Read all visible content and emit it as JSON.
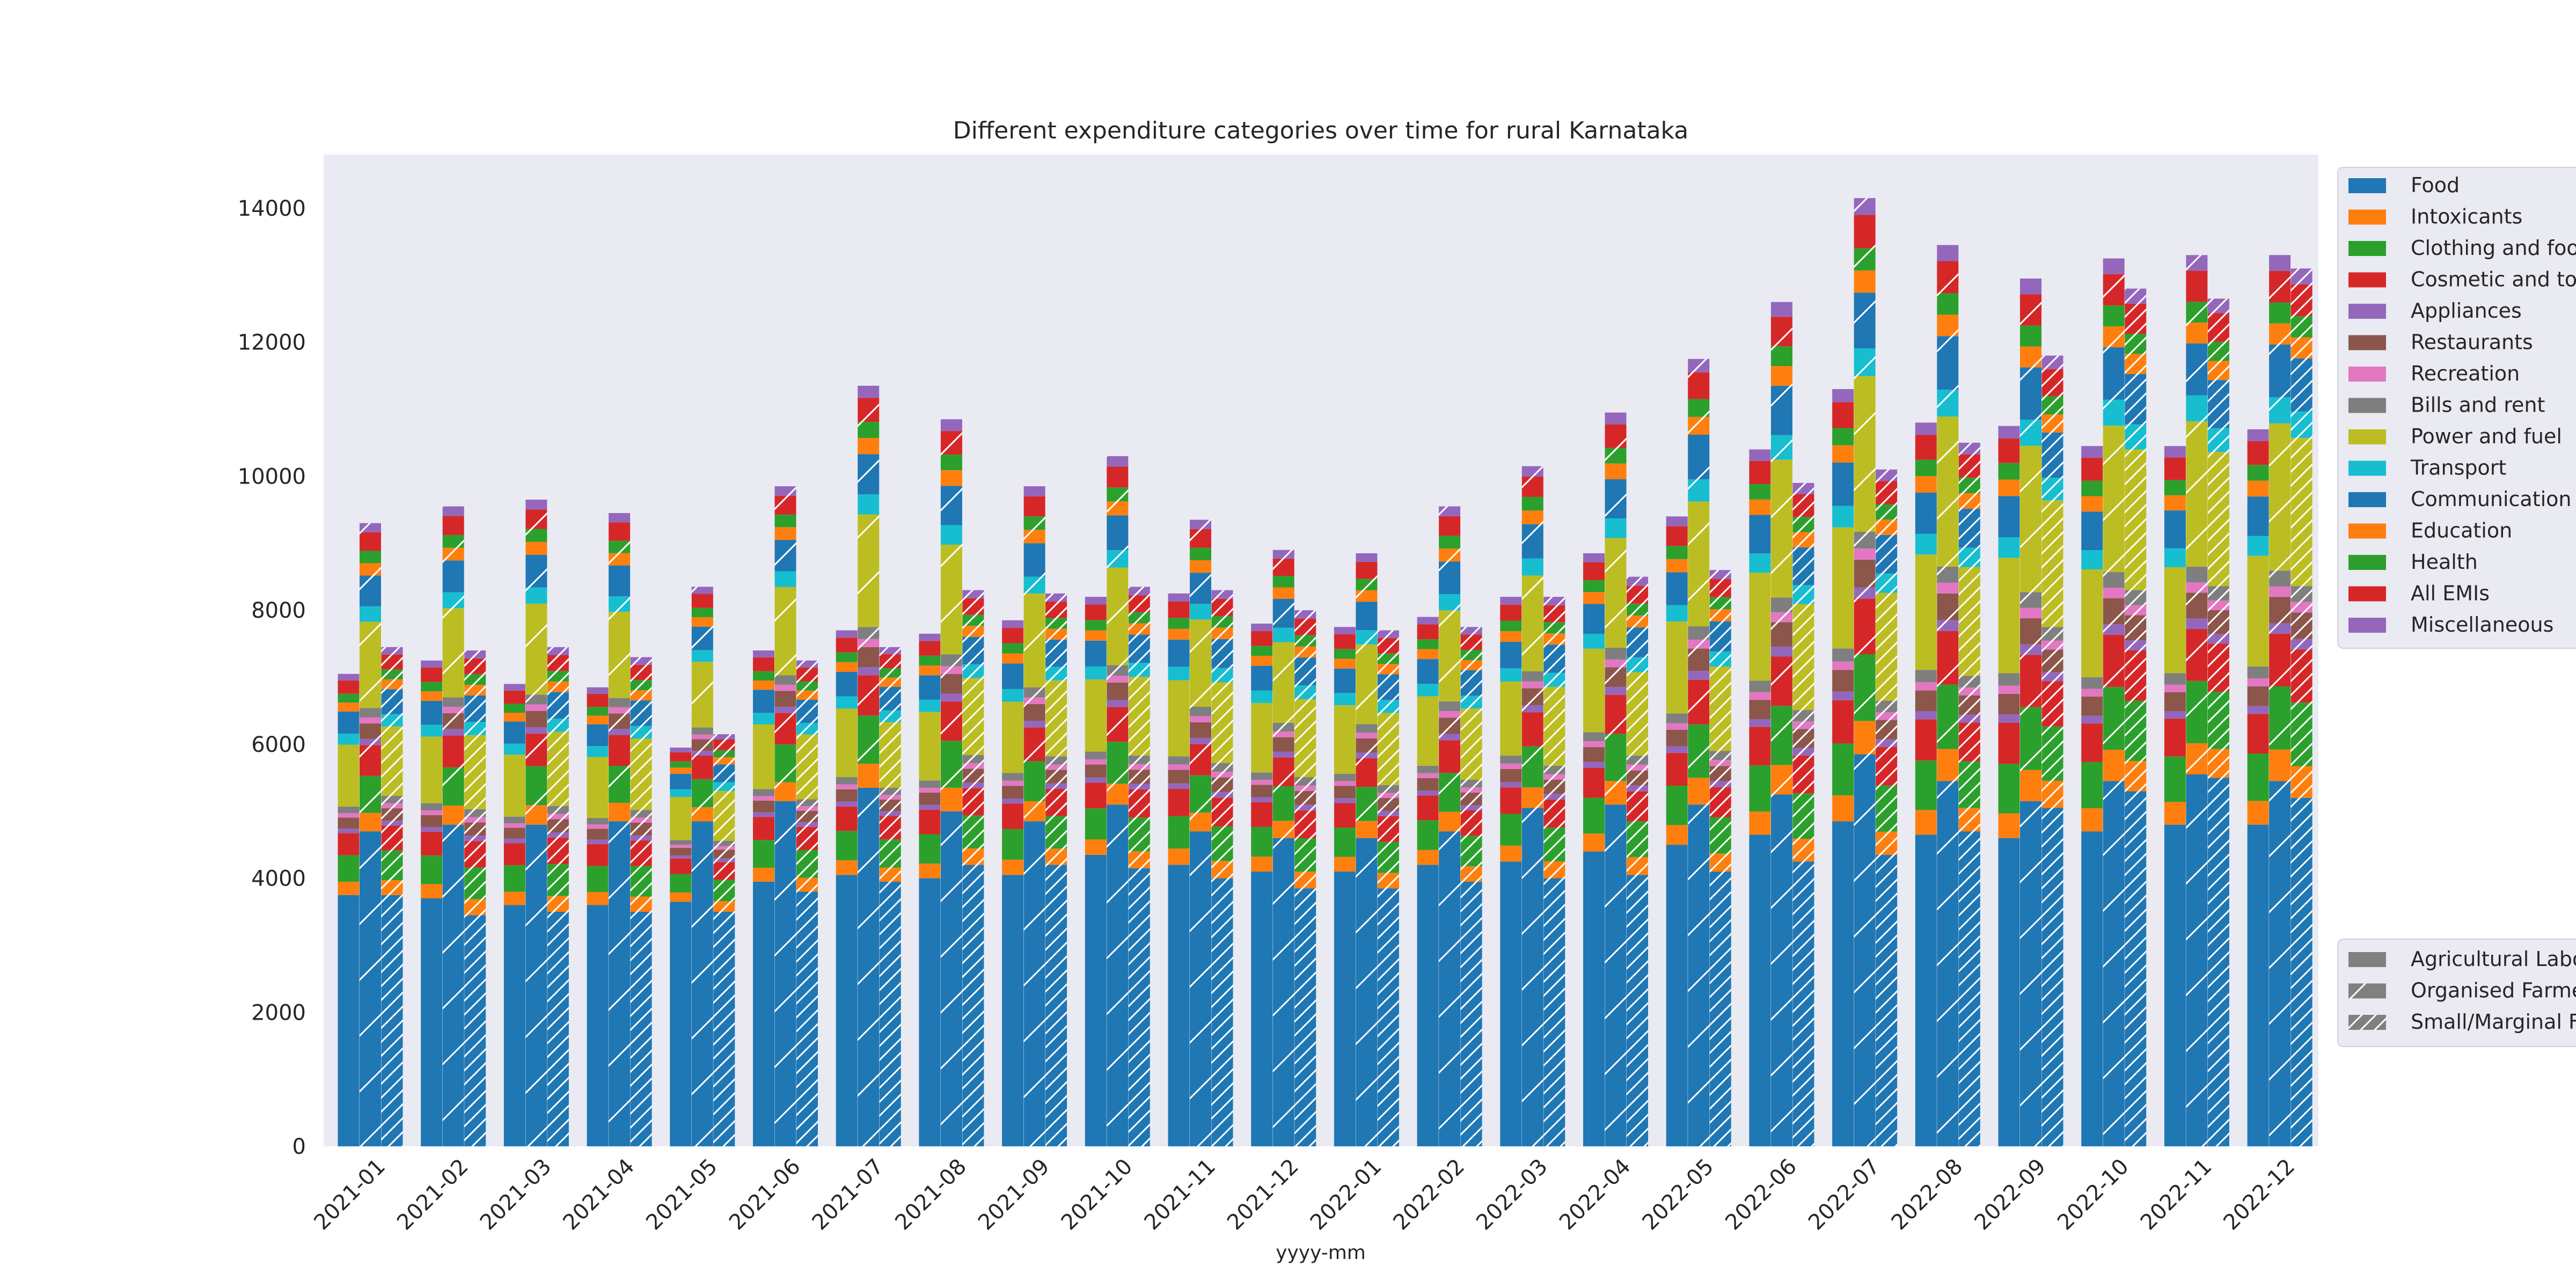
{
  "chart_data": {
    "type": "bar",
    "stacked": true,
    "title": "Different expenditure categories over time for rural Karnataka",
    "xlabel": "yyyy-mm",
    "ylabel": "",
    "ylim": [
      0,
      14800
    ],
    "yticks": [
      0,
      2000,
      4000,
      6000,
      8000,
      10000,
      12000,
      14000
    ],
    "grid": false,
    "categories": [
      "2021-01",
      "2021-02",
      "2021-03",
      "2021-04",
      "2021-05",
      "2021-06",
      "2021-07",
      "2021-08",
      "2021-09",
      "2021-10",
      "2021-11",
      "2021-12",
      "2022-01",
      "2022-02",
      "2022-03",
      "2022-04",
      "2022-05",
      "2022-06",
      "2022-07",
      "2022-08",
      "2022-09",
      "2022-10",
      "2022-11",
      "2022-12"
    ],
    "expense_categories": [
      "Food",
      "Intoxicants",
      "Clothing and footwear",
      "Cosmetic and toiletries",
      "Appliances",
      "Restaurants",
      "Recreation",
      "Bills and rent",
      "Power and fuel",
      "Transport",
      "Communication and info",
      "Education",
      "Health",
      "All EMIs",
      "Miscellaneous"
    ],
    "colors": [
      "#1f77b4",
      "#ff7f0e",
      "#2ca02c",
      "#d62728",
      "#9467bd",
      "#8c564b",
      "#e377c2",
      "#7f7f7f",
      "#bcbd22",
      "#17becf",
      "#1f77b4",
      "#ff7f0e",
      "#2ca02c",
      "#d62728",
      "#9467bd"
    ],
    "occupation_groups": [
      {
        "name": "Agricultural Labourers",
        "hatch": "none"
      },
      {
        "name": "Organised Farmers",
        "hatch": "light"
      },
      {
        "name": "Small/Marginal Farmers",
        "hatch": "dense"
      }
    ],
    "legend": {
      "categories_position": "upper right, outside plot",
      "groups_position": "lower right, outside plot"
    },
    "series": [
      {
        "group": "Agricultural Labourers",
        "totals": [
          7050,
          7250,
          6900,
          6850,
          5950,
          7400,
          7700,
          7650,
          7850,
          8200,
          8250,
          7800,
          7750,
          7900,
          8200,
          8850,
          9400,
          10400,
          11300,
          10800,
          10750,
          10450,
          10450,
          10700
        ],
        "food": [
          3750,
          3700,
          3600,
          3600,
          3650,
          3950,
          4050,
          4000,
          4050,
          4350,
          4200,
          4100,
          4100,
          4200,
          4250,
          4400,
          4500,
          4650,
          4850,
          4650,
          4600,
          4700,
          4800,
          4800
        ]
      },
      {
        "group": "Organised Farmers",
        "totals": [
          9300,
          9550,
          9650,
          9450,
          8350,
          9850,
          11350,
          10850,
          9850,
          10300,
          9350,
          8900,
          8850,
          9550,
          10150,
          10950,
          11750,
          12600,
          14150,
          13450,
          12950,
          13250,
          13300,
          13300
        ],
        "food": [
          4700,
          4800,
          4800,
          4850,
          4850,
          5150,
          5350,
          5000,
          4850,
          5100,
          4700,
          4600,
          4600,
          4700,
          5050,
          5100,
          5100,
          5250,
          5850,
          5450,
          5150,
          5450,
          5550,
          5450
        ]
      },
      {
        "group": "Small/Marginal Farmers",
        "totals": [
          7450,
          7400,
          7450,
          7300,
          6150,
          7250,
          7450,
          8300,
          8250,
          8350,
          8300,
          8000,
          7700,
          7750,
          8200,
          8500,
          8600,
          9900,
          10100,
          10500,
          11800,
          12800,
          12650,
          13100
        ],
        "food": [
          3750,
          3450,
          3500,
          3500,
          3500,
          3800,
          3950,
          4200,
          4200,
          4150,
          4000,
          3850,
          3850,
          3950,
          4000,
          4050,
          4100,
          4250,
          4350,
          4700,
          5050,
          5300,
          5500,
          5200
        ]
      }
    ]
  }
}
